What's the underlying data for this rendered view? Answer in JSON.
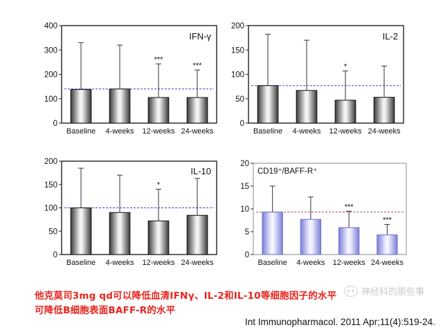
{
  "chart_data": [
    {
      "type": "bar",
      "title": "IFN-γ",
      "categories": [
        "Baseline",
        "4-weeks",
        "12-weeks",
        "24-weeks"
      ],
      "values": [
        138,
        140,
        105,
        105
      ],
      "error_upper": [
        330,
        320,
        243,
        218
      ],
      "significance": [
        "",
        "",
        "***",
        "***"
      ],
      "reference_line": 140,
      "ylim": [
        0,
        400
      ],
      "yticks": [
        0,
        100,
        200,
        300,
        400
      ],
      "bar_style": "gray-gradient"
    },
    {
      "type": "bar",
      "title": "IL-2",
      "categories": [
        "Baseline",
        "4-weeks",
        "12-weeks",
        "24-weeks"
      ],
      "values": [
        77,
        67,
        47,
        53
      ],
      "error_upper": [
        182,
        170,
        107,
        117
      ],
      "significance": [
        "",
        "",
        "*",
        ""
      ],
      "reference_line": 77,
      "ylim": [
        0,
        200
      ],
      "yticks": [
        0,
        50,
        100,
        150,
        200
      ],
      "bar_style": "gray-gradient"
    },
    {
      "type": "bar",
      "title": "IL-10",
      "categories": [
        "Baseline",
        "4-weeks",
        "12-weeks",
        "24-weeks"
      ],
      "values": [
        100,
        90,
        72,
        84
      ],
      "error_upper": [
        185,
        170,
        140,
        163
      ],
      "significance": [
        "",
        "",
        "*",
        ""
      ],
      "reference_line": 100,
      "ylim": [
        0,
        200
      ],
      "yticks": [
        0,
        50,
        100,
        150,
        200
      ],
      "bar_style": "gray-gradient"
    },
    {
      "type": "bar",
      "title": "CD19⁺/BAFF-R⁺",
      "categories": [
        "Baseline",
        "4-weeks",
        "12-weeks",
        "24-weeks"
      ],
      "values": [
        9.3,
        7.7,
        5.9,
        4.3
      ],
      "error_upper": [
        15,
        12.6,
        9.5,
        6.6
      ],
      "significance": [
        "",
        "",
        "***",
        "***"
      ],
      "reference_line": 9.3,
      "ylim": [
        0,
        20
      ],
      "yticks": [
        0,
        5,
        10,
        15,
        20
      ],
      "bar_style": "blue-gradient"
    }
  ],
  "caption": {
    "line1": "他克莫司3mg qd可以降低血清IFNγ、IL-2和IL-10等细胞因子的水平",
    "line2": "可降低B细胞表面BAFF-R的水平"
  },
  "citation": "Int Immunopharmacol. 2011 Apr;11(4):519-24.",
  "watermark": "神经科的那些事",
  "colors": {
    "reference_line_gray_panels": "#3a3ad0",
    "reference_line_blue_panel": "#b04080",
    "gray_bar_dark": "#3a3a3a",
    "gray_bar_light": "#f2f2f2",
    "blue_bar_dark": "#7c80d8",
    "blue_bar_light": "#f4f4ff",
    "caption_red": "#e8241e"
  }
}
